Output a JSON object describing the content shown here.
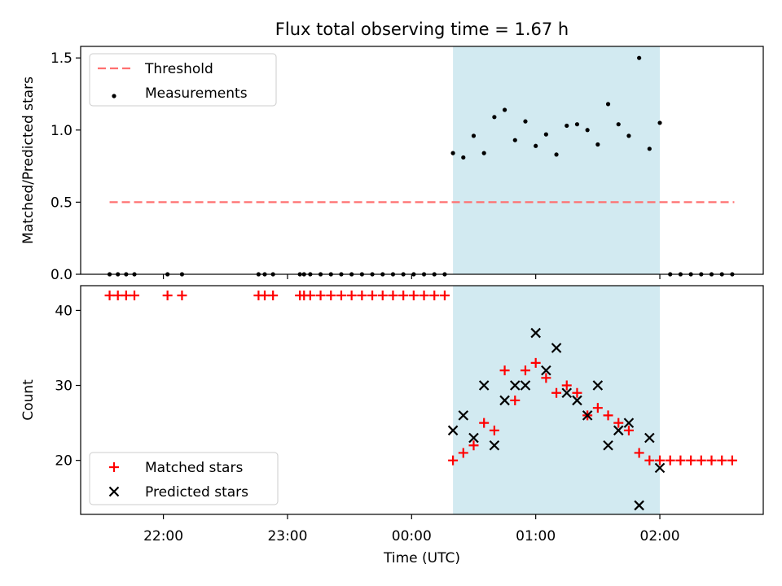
{
  "chart_data": {
    "type": "scatter",
    "title": "Flux total observing time = 1.67 h",
    "xlabel": "Time (UTC)",
    "x_tick_labels": [
      "22:00",
      "23:00",
      "00:00",
      "01:00",
      "02:00"
    ],
    "x_ticks_min": [
      1320,
      1380,
      1440,
      1500,
      1560
    ],
    "xlim_min": [
      1280,
      1610
    ],
    "highlight_span_min": [
      1460,
      1560
    ],
    "highlight_color": "#add8e6",
    "panels": [
      {
        "name": "ratio",
        "ylabel": "Matched/Predicted stars",
        "ylim": [
          0,
          1.58
        ],
        "y_ticks": [
          0.0,
          0.5,
          1.0,
          1.5
        ],
        "y_tick_labels": [
          "0.0",
          "0.5",
          "1.0",
          "1.5"
        ],
        "legend_position": "top-left",
        "series": [
          {
            "name": "Threshold",
            "kind": "dashed-line",
            "color": "#ff7070",
            "x": [
              1294,
              1596
            ],
            "y": [
              0.5,
              0.5
            ]
          },
          {
            "name": "Measurements",
            "kind": "dot",
            "color": "#000000",
            "x": [
              1294,
              1298,
              1302,
              1306,
              1322,
              1329,
              1366,
              1369,
              1373,
              1386,
              1388,
              1391,
              1396,
              1401,
              1406,
              1411,
              1416,
              1421,
              1426,
              1431,
              1436,
              1441,
              1446,
              1451,
              1456,
              1460,
              1465,
              1470,
              1475,
              1480,
              1485,
              1490,
              1495,
              1500,
              1505,
              1510,
              1515,
              1520,
              1525,
              1530,
              1535,
              1540,
              1545,
              1550,
              1555,
              1560,
              1565,
              1570,
              1575,
              1580,
              1585,
              1590,
              1595
            ],
            "y": [
              0,
              0,
              0,
              0,
              0,
              0,
              0,
              0,
              0,
              0,
              0,
              0,
              0,
              0,
              0,
              0,
              0,
              0,
              0,
              0,
              0,
              0,
              0,
              0,
              0,
              0.84,
              0.81,
              0.96,
              0.84,
              1.09,
              1.14,
              0.93,
              1.06,
              0.89,
              0.97,
              0.83,
              1.03,
              1.04,
              1.0,
              0.9,
              1.18,
              1.04,
              0.96,
              1.5,
              0.87,
              1.05,
              0,
              0,
              0,
              0,
              0,
              0,
              0
            ]
          }
        ]
      },
      {
        "name": "count",
        "ylabel": "Count",
        "ylim": [
          12.8,
          43.3
        ],
        "y_ticks": [
          20,
          30,
          40
        ],
        "y_tick_labels": [
          "20",
          "30",
          "40"
        ],
        "legend_position": "bottom-left",
        "series": [
          {
            "name": "Matched stars",
            "kind": "plus",
            "color": "#ff0000",
            "x": [
              1294,
              1298,
              1302,
              1306,
              1322,
              1329,
              1366,
              1369,
              1373,
              1386,
              1388,
              1391,
              1396,
              1401,
              1406,
              1411,
              1416,
              1421,
              1426,
              1431,
              1436,
              1441,
              1446,
              1451,
              1456,
              1460,
              1465,
              1470,
              1475,
              1480,
              1485,
              1490,
              1495,
              1500,
              1505,
              1510,
              1515,
              1520,
              1525,
              1530,
              1535,
              1540,
              1545,
              1550,
              1555,
              1560,
              1565,
              1570,
              1575,
              1580,
              1585,
              1590,
              1595
            ],
            "y": [
              42,
              42,
              42,
              42,
              42,
              42,
              42,
              42,
              42,
              42,
              42,
              42,
              42,
              42,
              42,
              42,
              42,
              42,
              42,
              42,
              42,
              42,
              42,
              42,
              42,
              20,
              21,
              22,
              25,
              24,
              32,
              28,
              32,
              33,
              31,
              29,
              30,
              29,
              26,
              27,
              26,
              25,
              24,
              21,
              20,
              20,
              20,
              20,
              20,
              20,
              20,
              20,
              20
            ]
          },
          {
            "name": "Predicted stars",
            "kind": "cross",
            "color": "#000000",
            "x": [
              1460,
              1465,
              1470,
              1475,
              1480,
              1485,
              1490,
              1495,
              1500,
              1505,
              1510,
              1515,
              1520,
              1525,
              1530,
              1535,
              1540,
              1545,
              1550,
              1555,
              1560
            ],
            "y": [
              24,
              26,
              23,
              30,
              22,
              28,
              30,
              30,
              37,
              32,
              35,
              29,
              28,
              26,
              30,
              22,
              24,
              25,
              14,
              23,
              19
            ]
          }
        ]
      }
    ]
  }
}
